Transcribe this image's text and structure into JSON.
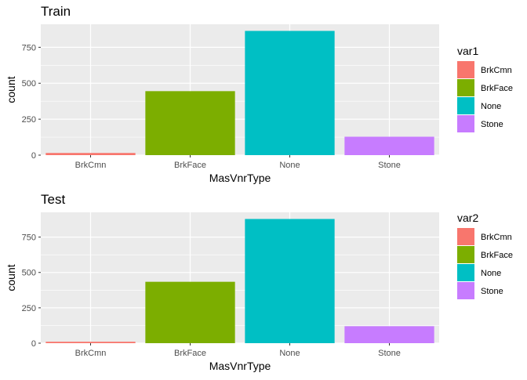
{
  "chart_data": [
    {
      "type": "bar",
      "title": "Train",
      "xlabel": "MasVnrType",
      "ylabel": "count",
      "categories": [
        "BrkCmn",
        "BrkFace",
        "None",
        "Stone"
      ],
      "values": [
        15,
        445,
        864,
        128
      ],
      "ylim": [
        0,
        910
      ],
      "yticks": [
        0,
        250,
        500,
        750
      ],
      "ytick_labels": [
        "0",
        "250",
        "500",
        "750"
      ],
      "grid": true,
      "legend": {
        "title": "var1",
        "position": "right",
        "entries": [
          "BrkCmn",
          "BrkFace",
          "None",
          "Stone"
        ]
      }
    },
    {
      "type": "bar",
      "title": "Test",
      "xlabel": "MasVnrType",
      "ylabel": "count",
      "categories": [
        "BrkCmn",
        "BrkFace",
        "None",
        "Stone"
      ],
      "values": [
        10,
        434,
        878,
        120
      ],
      "ylim": [
        0,
        925
      ],
      "yticks": [
        0,
        250,
        500,
        750
      ],
      "ytick_labels": [
        "0",
        "250",
        "500",
        "750"
      ],
      "grid": true,
      "legend": {
        "title": "var2",
        "position": "right",
        "entries": [
          "BrkCmn",
          "BrkFace",
          "None",
          "Stone"
        ]
      }
    }
  ],
  "colors": {
    "BrkCmn": "#F8766D",
    "BrkFace": "#7CAE00",
    "None": "#00BFC4",
    "Stone": "#C77CFF",
    "panel": "#EBEBEB",
    "grid": "#FFFFFF"
  }
}
